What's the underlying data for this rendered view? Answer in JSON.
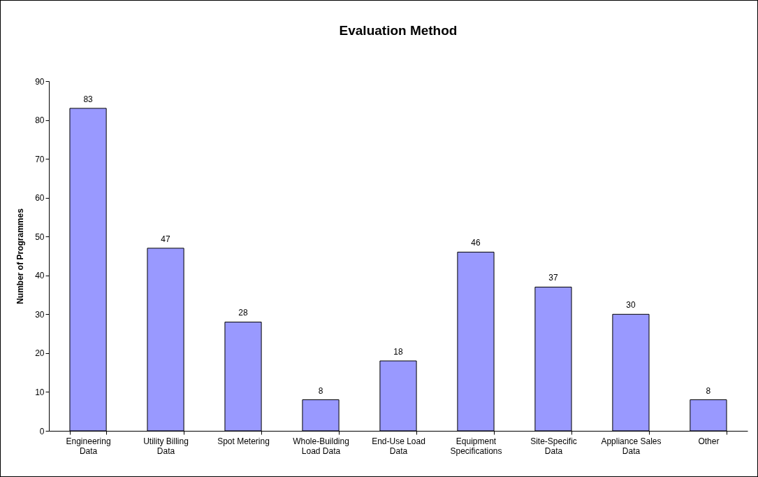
{
  "chart_data": {
    "type": "bar",
    "title": "Evaluation Method",
    "ylabel": "Number of Programmes",
    "categories": [
      "Engineering Data",
      "Utility Billing Data",
      "Spot Metering",
      "Whole-Building Load Data",
      "End-Use Load Data",
      "Equipment Specifications",
      "Site-Specific Data",
      "Appliance Sales Data",
      "Other"
    ],
    "values": [
      83,
      47,
      28,
      8,
      18,
      46,
      37,
      30,
      8
    ],
    "color": "#9999ff",
    "ylim": [
      0,
      90
    ],
    "yticks": [
      0,
      10,
      20,
      30,
      40,
      50,
      60,
      70,
      80,
      90
    ],
    "grid": false,
    "data_labels": true
  }
}
